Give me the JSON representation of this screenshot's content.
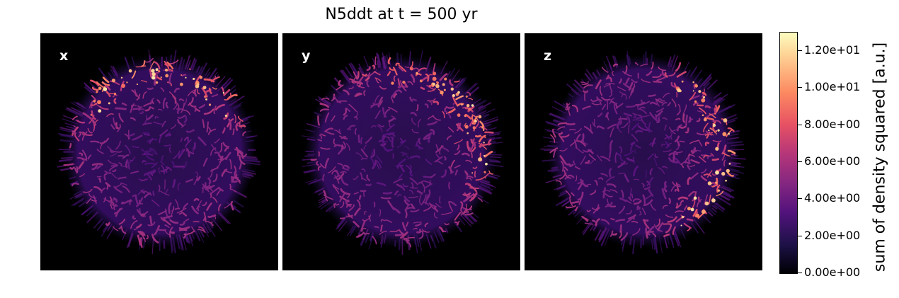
{
  "title": "N5ddt at t = 500 yr",
  "panels": [
    {
      "label": "x",
      "hot_side": "top"
    },
    {
      "label": "y",
      "hot_side": "top-right"
    },
    {
      "label": "z",
      "hot_side": "right"
    }
  ],
  "colorbar": {
    "label": "sum of density squared [a.u.]",
    "colormap": "magma",
    "range": [
      0,
      13
    ],
    "ticks": [
      {
        "value": 0,
        "label": "0.00e+00"
      },
      {
        "value": 2,
        "label": "2.00e+00"
      },
      {
        "value": 4,
        "label": "4.00e+00"
      },
      {
        "value": 6,
        "label": "6.00e+00"
      },
      {
        "value": 8,
        "label": "8.00e+00"
      },
      {
        "value": 10,
        "label": "1.00e+01"
      },
      {
        "value": 12,
        "label": "1.20e+01"
      }
    ]
  }
}
